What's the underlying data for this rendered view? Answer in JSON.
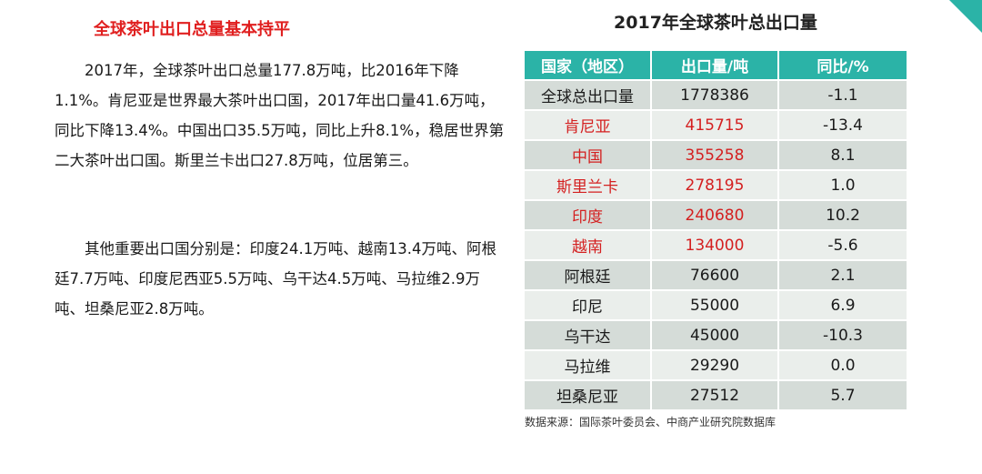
{
  "left": {
    "title": "全球茶叶出口总量基本持平",
    "paragraph_1": "2017年，全球茶叶出口总量177.8万吨，比2016年下降1.1%。肯尼亚是世界最大茶叶出口国，2017年出口量41.6万吨，同比下降13.4%。中国出口35.5万吨，同比上升8.1%，稳居世界第二大茶叶出口国。斯里兰卡出口27.8万吨，位居第三。",
    "paragraph_2": "其他重要出口国分别是：印度24.1万吨、越南13.4万吨、阿根廷7.7万吨、印度尼西亚5.5万吨、乌干达4.5万吨、马拉维2.9万吨、坦桑尼亚2.8万吨。"
  },
  "table": {
    "title": "2017年全球茶叶总出口量",
    "headers": [
      "国家（地区）",
      "出口量/吨",
      "同比/%"
    ],
    "rows": [
      {
        "country": "全球总出口量",
        "volume": "1778386",
        "yoy": "-1.1"
      },
      {
        "country": "肯尼亚",
        "volume": "415715",
        "yoy": "-13.4"
      },
      {
        "country": "中国",
        "volume": "355258",
        "yoy": "8.1"
      },
      {
        "country": "斯里兰卡",
        "volume": "278195",
        "yoy": "1.0"
      },
      {
        "country": "印度",
        "volume": "240680",
        "yoy": "10.2"
      },
      {
        "country": "越南",
        "volume": "134000",
        "yoy": "-5.6"
      },
      {
        "country": "阿根廷",
        "volume": "76600",
        "yoy": "2.1"
      },
      {
        "country": "印尼",
        "volume": "55000",
        "yoy": "6.9"
      },
      {
        "country": "乌干达",
        "volume": "45000",
        "yoy": "-10.3"
      },
      {
        "country": "马拉维",
        "volume": "29290",
        "yoy": "0.0"
      },
      {
        "country": "坦桑尼亚",
        "volume": "27512",
        "yoy": "5.7"
      }
    ],
    "source": "数据来源：国际茶叶委员会、中商产业研究院数据库"
  },
  "colors": {
    "accent": "#2bb3a7",
    "title_red": "#e02020",
    "highlight_red": "#d42020",
    "row_dark": "#d5dcd8",
    "row_light": "#eaeeeb"
  }
}
